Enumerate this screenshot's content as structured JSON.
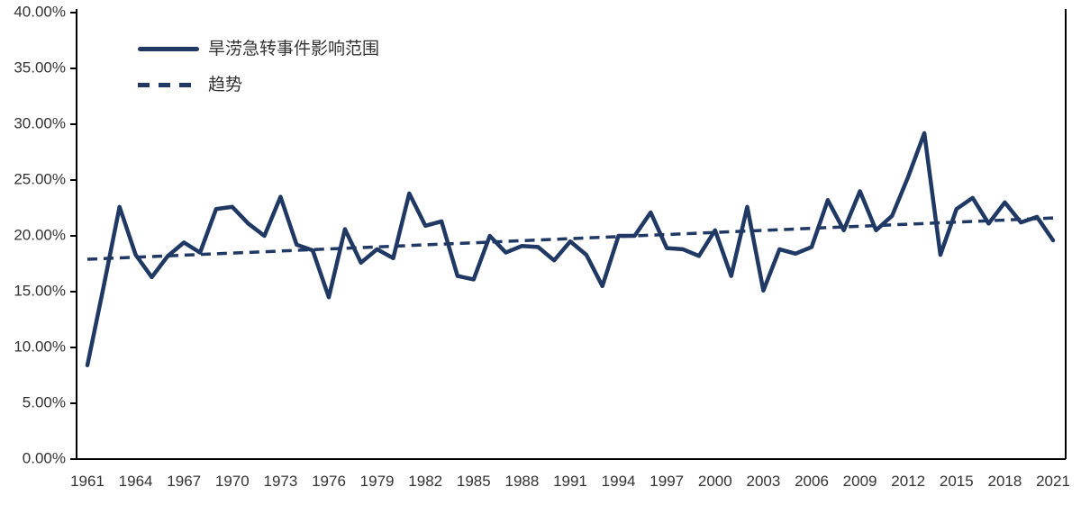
{
  "chart_data": {
    "type": "line",
    "title": "",
    "xlabel": "",
    "ylabel": "",
    "ylim": [
      0,
      40
    ],
    "grid": false,
    "legend_position": "top-left",
    "x_start_year": 1961,
    "x_end_year": 2021,
    "x_tick_labels": [
      "1961",
      "1964",
      "1967",
      "1970",
      "1973",
      "1976",
      "1979",
      "1982",
      "1985",
      "1988",
      "1991",
      "1994",
      "1997",
      "2000",
      "2003",
      "2006",
      "2009",
      "2012",
      "2015",
      "2018",
      "2021"
    ],
    "y_tick_labels": [
      "0.00%",
      "5.00%",
      "10.00%",
      "15.00%",
      "20.00%",
      "25.00%",
      "30.00%",
      "35.00%",
      "40.00%"
    ],
    "series": [
      {
        "name": "旱涝急转事件影响范围",
        "style": "solid",
        "color": "#1F3864",
        "unit": "percent",
        "values": [
          8.4,
          15.4,
          22.6,
          18.3,
          16.3,
          18.2,
          19.4,
          18.5,
          22.4,
          22.6,
          21.1,
          20.0,
          23.5,
          19.2,
          18.7,
          14.5,
          20.6,
          17.6,
          18.8,
          18.0,
          23.8,
          20.9,
          21.3,
          16.4,
          16.1,
          20.0,
          18.5,
          19.1,
          19.0,
          17.8,
          19.5,
          18.3,
          15.5,
          20.0,
          20.0,
          22.1,
          18.9,
          18.8,
          18.2,
          20.5,
          16.4,
          22.6,
          15.1,
          18.8,
          18.4,
          19.0,
          23.2,
          20.5,
          24.0,
          20.5,
          21.8,
          25.3,
          29.2,
          18.3,
          22.4,
          23.4,
          21.1,
          23.0,
          21.2,
          21.7,
          19.6
        ]
      },
      {
        "name": "趋势",
        "style": "dashed",
        "color": "#1F3864",
        "unit": "percent",
        "trend_start": 17.9,
        "trend_end": 21.6
      }
    ]
  },
  "legend": {
    "series_label": "旱涝急转事件影响范围",
    "trend_label": "趋势"
  },
  "colors": {
    "line": "#1F3864",
    "axis": "#000000",
    "text": "#333333",
    "background": "#FFFFFF"
  }
}
